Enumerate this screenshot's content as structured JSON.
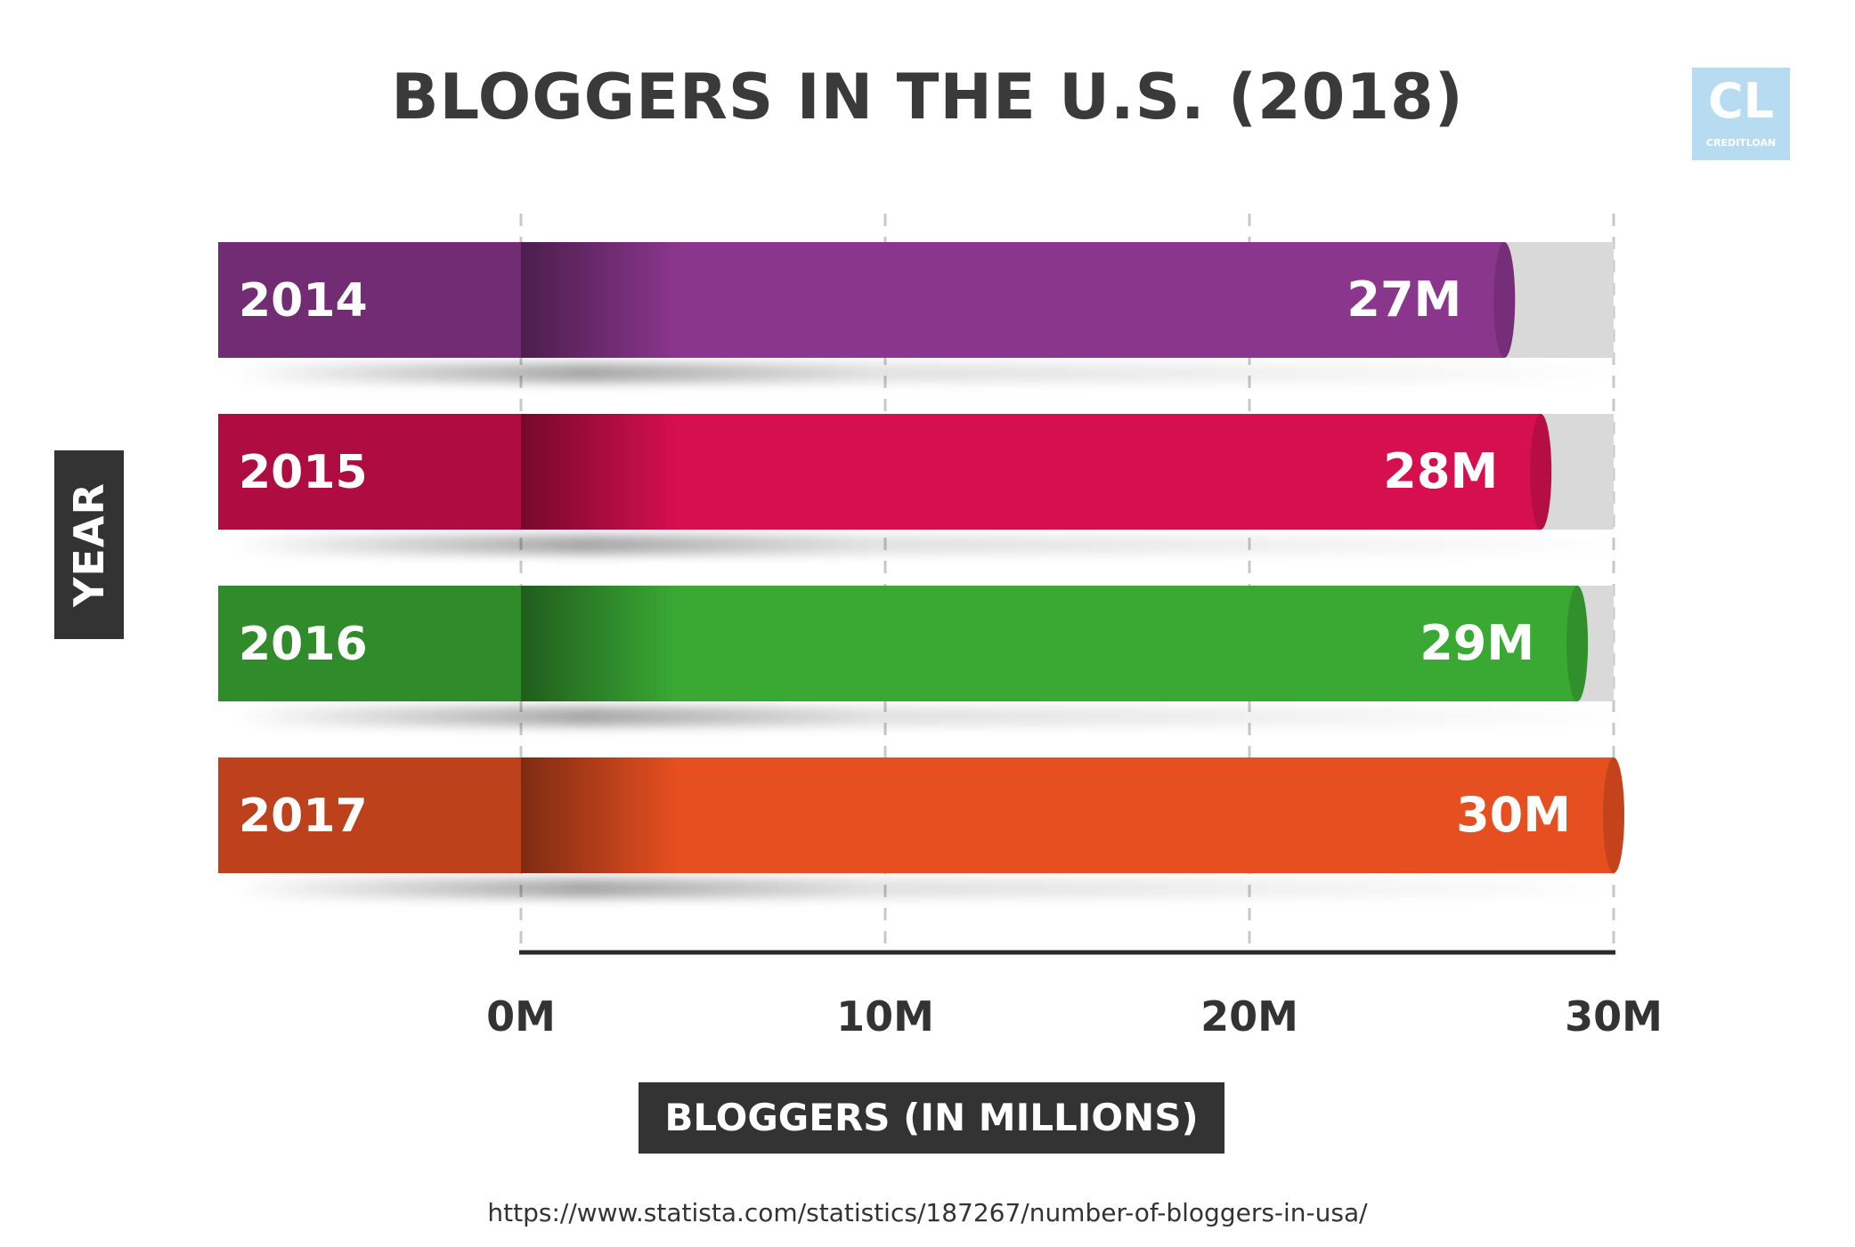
{
  "chart_data": {
    "type": "bar",
    "orientation": "horizontal",
    "title": "BLOGGERS IN THE U.S. (2018)",
    "categories": [
      "2014",
      "2015",
      "2016",
      "2017"
    ],
    "values": [
      27,
      28,
      29,
      30
    ],
    "value_labels": [
      "27M",
      "28M",
      "29M",
      "30M"
    ],
    "colors": [
      "#8a368c",
      "#d60f4f",
      "#3aa934",
      "#e64f20"
    ],
    "xlabel": "BLOGGERS (IN MILLIONS)",
    "ylabel": "YEAR",
    "xlim": [
      0,
      30
    ],
    "xticks": [
      0,
      10,
      20,
      30
    ],
    "xtick_labels": [
      "0M",
      "10M",
      "20M",
      "30M"
    ],
    "grid": "vertical dashed",
    "legend": "none"
  },
  "logo": {
    "letters": "CL",
    "name": "CREDITLOAN"
  },
  "source": "https://www.statista.com/statistics/187267/number-of-bloggers-in-usa/"
}
